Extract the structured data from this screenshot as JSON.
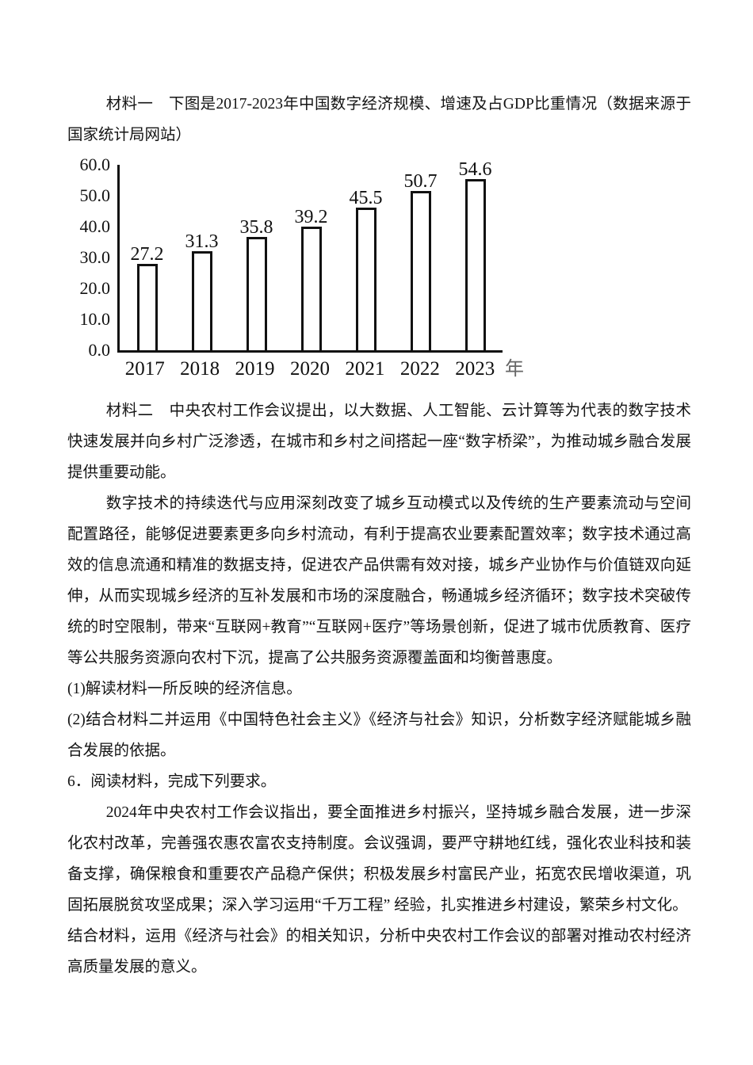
{
  "doc": {
    "material1_intro": "材料一　下图是2017-2023年中国数字经济规模、增速及占GDP比重情况（数据来源于国家统计局网站）",
    "material2": "材料二　中央农村工作会议提出，以大数据、人工智能、云计算等为代表的数字技术快速发展并向乡村广泛渗透，在城市和乡村之间搭起一座“数字桥梁”，为推动城乡融合发展提供重要动能。",
    "material2_para2": "数字技术的持续迭代与应用深刻改变了城乡互动模式以及传统的生产要素流动与空间配置路径，能够促进要素更多向乡村流动，有利于提高农业要素配置效率；数字技术通过高效的信息流通和精准的数据支持，促进农产品供需有效对接，城乡产业协作与价值链双向延伸，从而实现城乡经济的互补发展和市场的深度融合，畅通城乡经济循环；数字技术突破传统的时空限制，带来“互联网+教育”“互联网+医疗”等场景创新，促进了城市优质教育、医疗等公共服务资源向农村下沉，提高了公共服务资源覆盖面和均衡普惠度。",
    "question1": "(1)解读材料一所反映的经济信息。",
    "question2": "(2)结合材料二并运用《中国特色社会主义》《经济与社会》知识，分析数字经济赋能城乡融合发展的依据。",
    "question6_header": "6．阅读材料，完成下列要求。",
    "question6_material": "2024年中央农村工作会议指出，要全面推进乡村振兴，坚持城乡融合发展，进一步深化农村改革，完善强农惠农富农支持制度。会议强调，要严守耕地红线，强化农业科技和装备支撑，确保粮食和重要农产品稳产保供；积极发展乡村富民产业，拓宽农民增收渠道，巩固拓展脱贫攻坚成果；深入学习运用“千万工程” 经验，扎实推进乡村建设，繁荣乡村文化。",
    "question6_task": "结合材料，运用《经济与社会》的相关知识，分析中央农村工作会议的部署对推动农村经济高质量发展的意义。"
  },
  "chart_data": {
    "type": "bar",
    "title": "",
    "xlabel": "年",
    "ylabel": "",
    "categories": [
      "2017",
      "2018",
      "2019",
      "2020",
      "2021",
      "2022",
      "2023"
    ],
    "values": [
      27.2,
      31.3,
      35.8,
      39.2,
      45.5,
      50.7,
      54.6
    ],
    "y_ticks": [
      "60.0",
      "50.0",
      "40.0",
      "30.0",
      "20.0",
      "10.0",
      "0.0"
    ],
    "ylim": [
      0,
      60
    ],
    "x_axis_suffix": "年",
    "grid": false,
    "legend": false,
    "bar_fill": "#ffffff",
    "bar_border": "#111111",
    "axis_color": "#111111"
  }
}
